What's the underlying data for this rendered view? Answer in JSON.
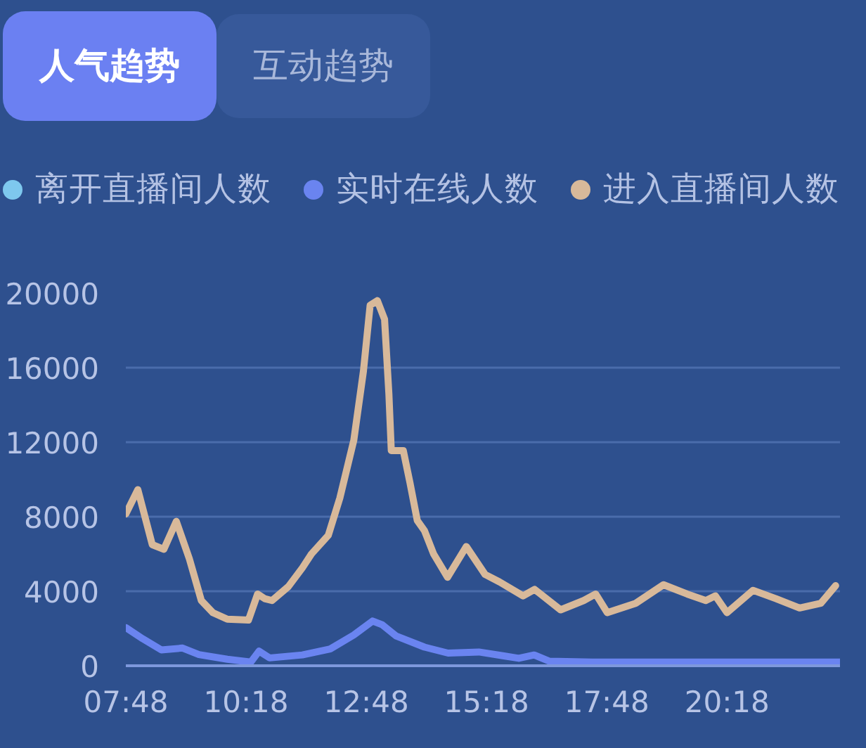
{
  "chart_data": {
    "type": "line",
    "title": "人气趋势",
    "subtitle": "互动趋势",
    "xlim": [
      7.8,
      22.65
    ],
    "xticks": [
      {
        "value": 7.8,
        "label": "07:48"
      },
      {
        "value": 10.3,
        "label": "10:18"
      },
      {
        "value": 12.8,
        "label": "12:48"
      },
      {
        "value": 15.3,
        "label": "15:18"
      },
      {
        "value": 17.8,
        "label": "17:48"
      },
      {
        "value": 20.3,
        "label": "20:18"
      }
    ],
    "ylim": [
      0,
      20000
    ],
    "yticks": [
      0,
      4000,
      8000,
      12000,
      16000,
      20000
    ],
    "grid": "y",
    "legend": "top left",
    "marker": "none",
    "line_style": "solid",
    "series": [
      {
        "name": "离开直播间人数",
        "color": "#7ec8ee"
      },
      {
        "name": "实时在线人数",
        "color": "#6a84f0",
        "x": [
          7.8,
          8.15,
          8.54,
          8.98,
          9.32,
          9.91,
          10.4,
          10.57,
          10.79,
          11.47,
          12.05,
          12.54,
          12.93,
          13.13,
          13.42,
          14.01,
          14.5,
          15.14,
          15.66,
          15.97,
          16.29,
          16.6,
          17.5,
          19.0,
          20.5,
          22.65
        ],
        "values": [
          2050,
          1450,
          850,
          950,
          600,
          350,
          200,
          780,
          420,
          580,
          900,
          1650,
          2400,
          2200,
          1600,
          1000,
          680,
          740,
          530,
          400,
          580,
          250,
          200,
          200,
          200,
          200
        ]
      },
      {
        "name": "进入直播间人数",
        "color": "#d8b99a",
        "x": [
          7.8,
          8.05,
          8.35,
          8.59,
          8.85,
          9.12,
          9.37,
          9.61,
          9.91,
          10.35,
          10.54,
          10.69,
          10.84,
          11.18,
          11.47,
          11.66,
          12.01,
          12.25,
          12.54,
          12.74,
          12.88,
          13.03,
          13.18,
          13.27,
          13.32,
          13.57,
          13.71,
          13.86,
          14.01,
          14.2,
          14.49,
          14.88,
          15.27,
          15.57,
          16.06,
          16.3,
          16.84,
          17.32,
          17.57,
          17.81,
          18.4,
          18.98,
          19.47,
          19.86,
          20.06,
          20.3,
          20.84,
          21.32,
          21.81,
          22.25,
          22.56
        ],
        "values": [
          8150,
          9450,
          6500,
          6250,
          7750,
          5750,
          3500,
          2850,
          2500,
          2450,
          3850,
          3600,
          3500,
          4250,
          5250,
          6000,
          7000,
          9000,
          12100,
          15800,
          19350,
          19600,
          18600,
          14600,
          11550,
          11550,
          9800,
          7800,
          7250,
          6000,
          4750,
          6400,
          4900,
          4500,
          3750,
          4100,
          3000,
          3500,
          3850,
          2850,
          3350,
          4350,
          3850,
          3500,
          3750,
          2850,
          4050,
          3600,
          3100,
          3350,
          4300
        ]
      }
    ]
  }
}
